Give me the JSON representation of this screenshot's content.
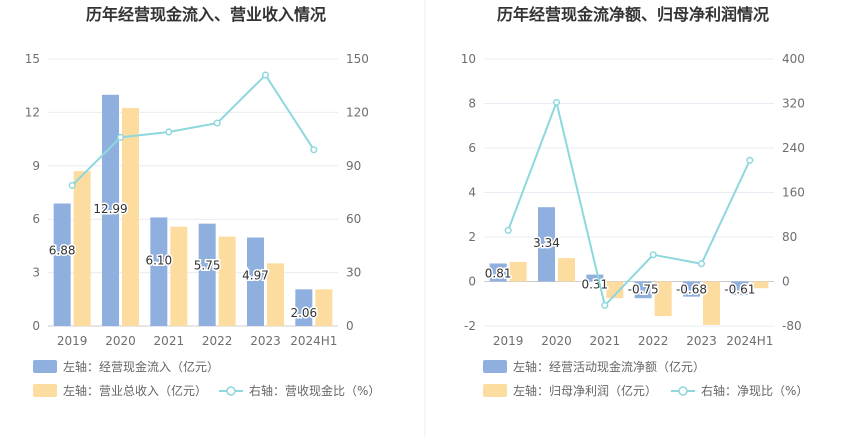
{
  "chart_data": [
    {
      "type": "bar",
      "title": "历年经营现金流入、营业收入情况",
      "categories": [
        "2019",
        "2020",
        "2021",
        "2022",
        "2023",
        "2024H1"
      ],
      "left_axis": {
        "ylim": [
          0,
          15
        ],
        "ticks": [
          "0",
          "3",
          "6",
          "9",
          "12",
          "15"
        ]
      },
      "right_axis": {
        "ylim": [
          0,
          150
        ],
        "ticks": [
          "0",
          "30",
          "60",
          "90",
          "120",
          "150"
        ]
      },
      "series": [
        {
          "name": "左轴：经营现金流入（亿元）",
          "axis": "left",
          "kind": "bar",
          "color": "#8fb0de",
          "values": [
            6.88,
            12.99,
            6.1,
            5.75,
            4.97,
            2.06
          ],
          "labels": [
            "6.88",
            "12.99",
            "6.10",
            "5.75",
            "4.97",
            "2.06"
          ]
        },
        {
          "name": "左轴：营业总收入（亿元）",
          "axis": "left",
          "kind": "bar",
          "color": "#fddca0",
          "values": [
            8.7,
            12.25,
            5.58,
            5.02,
            3.52,
            2.06
          ]
        },
        {
          "name": "右轴：营收现金比（%）",
          "axis": "right",
          "kind": "line",
          "color": "#8dd8dd",
          "values": [
            79,
            106,
            109,
            114,
            141,
            99
          ]
        }
      ],
      "legend": "bottom",
      "grid": true
    },
    {
      "type": "bar",
      "title": "历年经营现金流净额、归母净利润情况",
      "categories": [
        "2019",
        "2020",
        "2021",
        "2022",
        "2023",
        "2024H1"
      ],
      "left_axis": {
        "ylim": [
          -2,
          10
        ],
        "ticks": [
          "-2",
          "0",
          "2",
          "4",
          "6",
          "8",
          "10"
        ]
      },
      "right_axis": {
        "ylim": [
          -80,
          400
        ],
        "ticks": [
          "-80",
          "0",
          "80",
          "160",
          "240",
          "320",
          "400"
        ]
      },
      "series": [
        {
          "name": "左轴：经营活动现金流净额（亿元）",
          "axis": "left",
          "kind": "bar",
          "color": "#8fb0de",
          "values": [
            0.81,
            3.34,
            0.31,
            -0.75,
            -0.68,
            -0.61
          ],
          "labels": [
            "0.81",
            "3.34",
            "0.31",
            "-0.75",
            "-0.68",
            "-0.61"
          ]
        },
        {
          "name": "左轴：归母净利润（亿元）",
          "axis": "left",
          "kind": "bar",
          "color": "#fddca0",
          "values": [
            0.88,
            1.05,
            -0.75,
            -1.55,
            -1.95,
            -0.3
          ]
        },
        {
          "name": "右轴：净现比（%）",
          "axis": "right",
          "kind": "line",
          "color": "#8dd8dd",
          "values": [
            92,
            322,
            -43,
            48,
            32,
            218
          ]
        }
      ],
      "legend": "bottom",
      "grid": true
    }
  ]
}
